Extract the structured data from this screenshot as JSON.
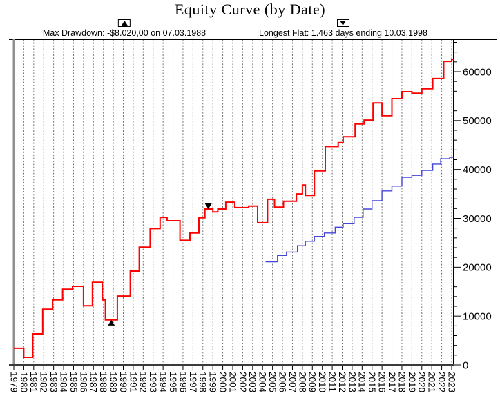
{
  "title": "Equity Curve (by Date)",
  "annotations": {
    "max_drawdown": {
      "icon": "up-triangle",
      "label": "Max Drawdown: -$8.020,00 on 07.03.1988"
    },
    "longest_flat": {
      "icon": "down-triangle",
      "label": "Longest Flat: 1.463 days ending 10.03.1998"
    }
  },
  "colors": {
    "primary_line": "#ff0000",
    "secondary_line": "#4444d9",
    "gridline": "#6e6e6e",
    "axis": "#000000",
    "marker": "#000000",
    "background": "#ffffff"
  },
  "chart_data": {
    "type": "line",
    "line_style": "step",
    "title": "Equity Curve (by Date)",
    "xlabel": "",
    "ylabel": "",
    "x_tick_years": [
      1979,
      1980,
      1981,
      1982,
      1983,
      1984,
      1985,
      1986,
      1987,
      1988,
      1989,
      1990,
      1991,
      1992,
      1993,
      1994,
      1995,
      1996,
      1997,
      1998,
      1999,
      2000,
      2001,
      2002,
      2003,
      2004,
      2005,
      2006,
      2007,
      2008,
      2009,
      2010,
      2011,
      2012,
      2013,
      2014,
      2015,
      2016,
      2017,
      2018,
      2019,
      2020,
      2021,
      2022,
      2023
    ],
    "y_major_ticks": [
      0,
      10000,
      20000,
      30000,
      40000,
      50000,
      60000
    ],
    "y_minor_step": 2000,
    "ylim": [
      0,
      66600
    ],
    "xlim": [
      1979,
      2023.2
    ],
    "grid": "vertical-dashed",
    "y_axis_side": "right",
    "series": [
      {
        "name": "primary-equity",
        "color": "#ff0000",
        "width": 2,
        "points": [
          [
            1979.0,
            3400
          ],
          [
            1980.0,
            1550
          ],
          [
            1980.9,
            6350
          ],
          [
            1981.9,
            11400
          ],
          [
            1982.9,
            13300
          ],
          [
            1983.9,
            15500
          ],
          [
            1984.9,
            16100
          ],
          [
            1986.0,
            12100
          ],
          [
            1986.9,
            16900
          ],
          [
            1987.9,
            13300
          ],
          [
            1988.2,
            9200
          ],
          [
            1989.4,
            14100
          ],
          [
            1990.7,
            19200
          ],
          [
            1991.6,
            24100
          ],
          [
            1992.7,
            27900
          ],
          [
            1993.7,
            30200
          ],
          [
            1994.4,
            29500
          ],
          [
            1995.7,
            25500
          ],
          [
            1996.7,
            27000
          ],
          [
            1997.6,
            30100
          ],
          [
            1998.2,
            31900
          ],
          [
            1999.0,
            31300
          ],
          [
            1999.5,
            31900
          ],
          [
            2000.3,
            33300
          ],
          [
            2001.2,
            32200
          ],
          [
            2002.6,
            32500
          ],
          [
            2003.5,
            29100
          ],
          [
            2004.5,
            33900
          ],
          [
            2005.2,
            32300
          ],
          [
            2006.1,
            33500
          ],
          [
            2007.4,
            35000
          ],
          [
            2008.0,
            36800
          ],
          [
            2008.3,
            34700
          ],
          [
            2009.2,
            39700
          ],
          [
            2010.3,
            44700
          ],
          [
            2011.6,
            45500
          ],
          [
            2012.1,
            46700
          ],
          [
            2013.3,
            49300
          ],
          [
            2014.2,
            50100
          ],
          [
            2015.1,
            53600
          ],
          [
            2016.0,
            51000
          ],
          [
            2017.0,
            54500
          ],
          [
            2018.0,
            55900
          ],
          [
            2019.0,
            55600
          ],
          [
            2020.0,
            56500
          ],
          [
            2021.1,
            58600
          ],
          [
            2022.2,
            62100
          ],
          [
            2023.0,
            62500
          ]
        ]
      },
      {
        "name": "secondary-equity",
        "color": "#4444d9",
        "width": 1.4,
        "points": [
          [
            2004.3,
            21100
          ],
          [
            2005.5,
            22400
          ],
          [
            2006.4,
            23100
          ],
          [
            2007.5,
            24400
          ],
          [
            2008.3,
            25300
          ],
          [
            2009.2,
            26300
          ],
          [
            2010.2,
            27000
          ],
          [
            2011.3,
            28200
          ],
          [
            2012.1,
            28900
          ],
          [
            2013.2,
            30200
          ],
          [
            2014.1,
            31900
          ],
          [
            2015.0,
            33600
          ],
          [
            2016.0,
            35600
          ],
          [
            2017.0,
            36600
          ],
          [
            2018.0,
            38400
          ],
          [
            2019.0,
            38800
          ],
          [
            2020.0,
            39800
          ],
          [
            2021.1,
            41100
          ],
          [
            2021.9,
            42200
          ],
          [
            2022.8,
            42500
          ]
        ]
      }
    ],
    "markers": [
      {
        "name": "max-drawdown-marker",
        "shape": "up-triangle",
        "year": 1988.8,
        "value": 9200
      },
      {
        "name": "longest-flat-marker",
        "shape": "down-triangle",
        "year": 1998.55,
        "value": 31900
      }
    ]
  }
}
